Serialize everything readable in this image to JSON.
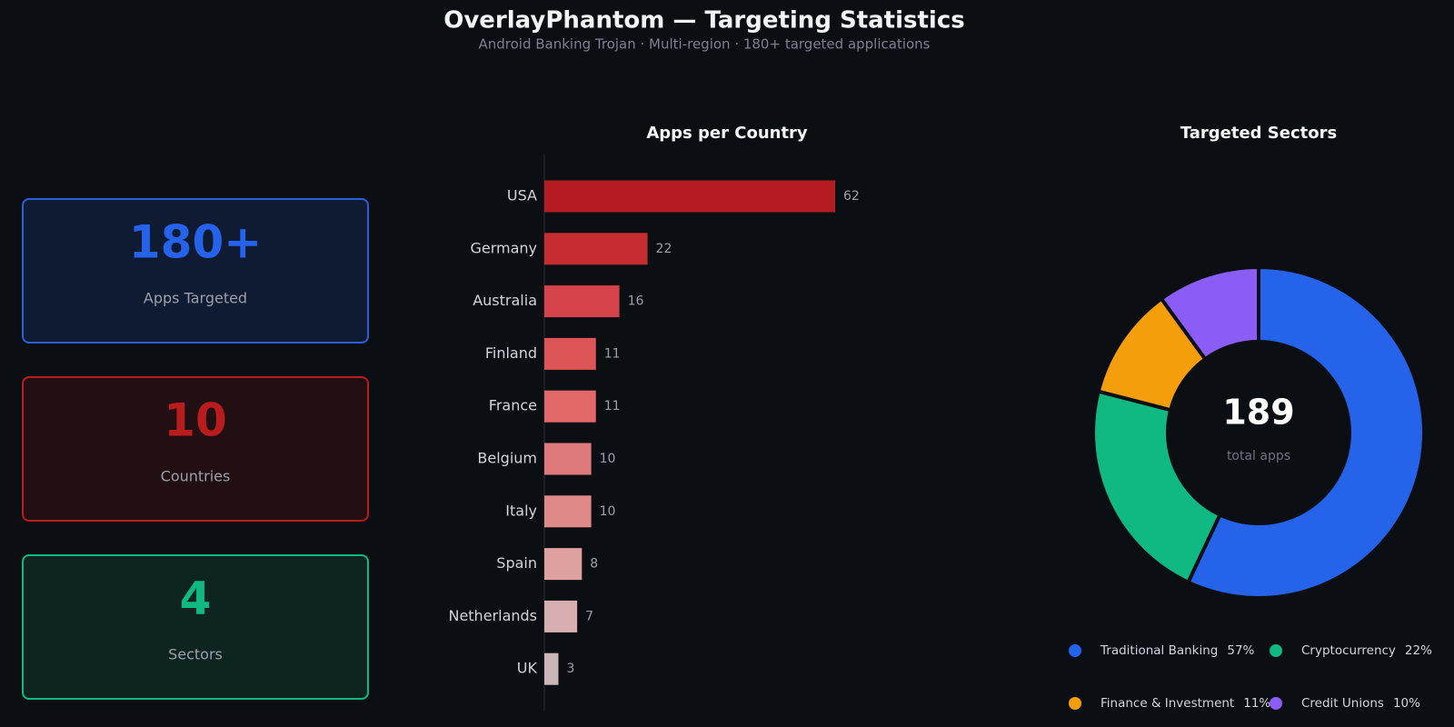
{
  "header": {
    "title": "OverlayPhantom — Targeting Statistics",
    "subtitle": "Android Banking Trojan  ·  Multi-region  ·  180+ targeted applications"
  },
  "stats": [
    {
      "value": "180+",
      "label": "Apps Targeted"
    },
    {
      "value": "10",
      "label": "Countries"
    },
    {
      "value": "4",
      "label": "Sectors"
    }
  ],
  "chart_data": [
    {
      "type": "hbar",
      "title": "Apps per Country",
      "categories": [
        "USA",
        "Germany",
        "Australia",
        "Finland",
        "France",
        "Belgium",
        "Italy",
        "Spain",
        "Netherlands",
        "UK"
      ],
      "values": [
        62,
        22,
        16,
        11,
        11,
        10,
        10,
        8,
        7,
        3
      ],
      "colors": [
        "#b41c21",
        "#c52d31",
        "#d6434a",
        "#de5558",
        "#e26768",
        "#df7a7b",
        "#df8989",
        "#dfa0a0",
        "#d8afb0",
        "#cbb6b8"
      ]
    },
    {
      "type": "donut",
      "title": "Targeted Sectors",
      "categories": [
        "Traditional Banking",
        "Cryptocurrency",
        "Finance & Investment",
        "Credit Unions"
      ],
      "values": [
        57,
        22,
        11,
        10
      ],
      "value_labels": [
        "57%",
        "22%",
        "11%",
        "10%"
      ],
      "colors": [
        "#2563eb",
        "#10b981",
        "#f59e0b",
        "#8b5cf6"
      ],
      "center_value": "189",
      "center_label": "total apps"
    }
  ]
}
